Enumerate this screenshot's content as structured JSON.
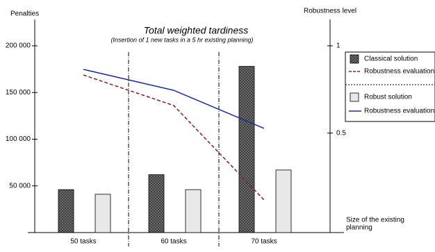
{
  "chart_data": {
    "type": "bar",
    "title": "Total weighted tardiness",
    "subtitle": "(Insertion of 1 new tasks in a 5 hr existing planning)",
    "ylabel": "Penalties",
    "y2label": "Robustness level",
    "xlabel": [
      "Size of the existing",
      "planning"
    ],
    "categories": [
      "50 tasks",
      "60 tasks",
      "70 tasks"
    ],
    "ylim": [
      0,
      200000
    ],
    "yticks": [
      {
        "value": 50000,
        "label": "50 000"
      },
      {
        "value": 100000,
        "label": "100 000"
      },
      {
        "value": 150000,
        "label": "150 000"
      },
      {
        "value": 200000,
        "label": "200 000"
      }
    ],
    "y2lim": [
      -0.07,
      1
    ],
    "y2ticks": [
      0.5,
      1
    ],
    "series": [
      {
        "name": "Classical solution",
        "type": "bar",
        "color": "#333333",
        "values": [
          46000,
          62000,
          178000
        ]
      },
      {
        "name": "Robustness evaluation",
        "type": "line",
        "axis": "y2",
        "color": "#8b1a1a",
        "dashed": true,
        "values": [
          0.833,
          0.658,
          0.117
        ]
      },
      {
        "name": "Robust solution",
        "type": "bar",
        "color": "#e8e8e8",
        "values": [
          41000,
          46000,
          67000
        ]
      },
      {
        "name": "Robustness evaluation",
        "type": "line",
        "axis": "y2",
        "color": "#1a2a9a",
        "dashed": false,
        "values": [
          0.865,
          0.745,
          0.527
        ]
      }
    ]
  }
}
